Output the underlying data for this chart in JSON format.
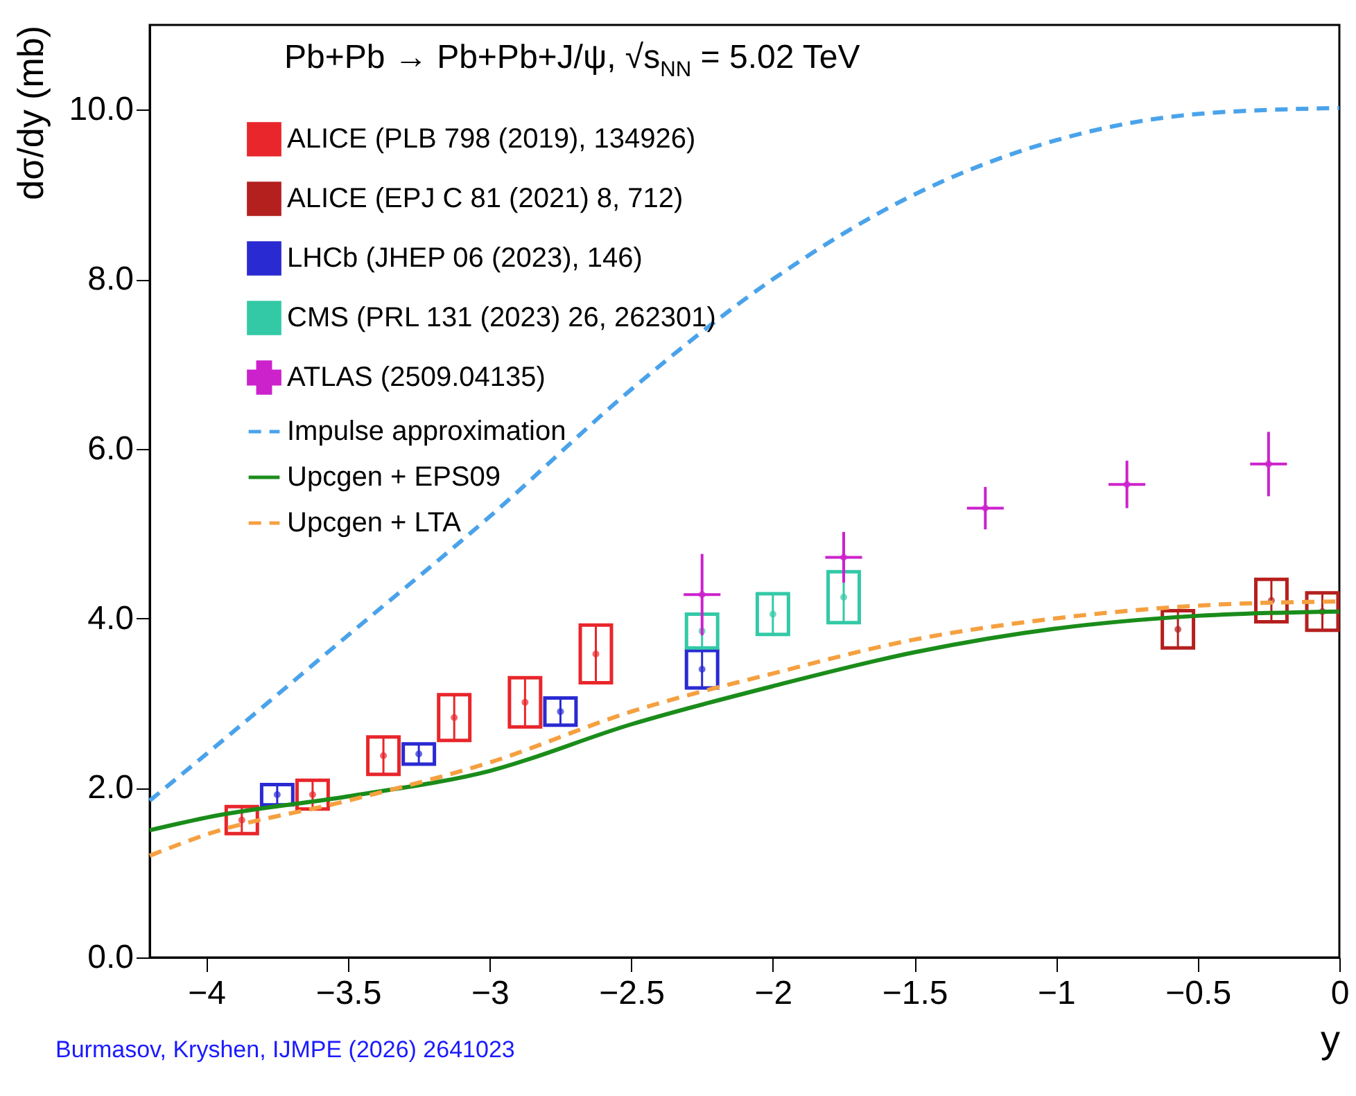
{
  "chart_data": {
    "type": "scatter",
    "title": "Pb+Pb → Pb+Pb+J/ψ, √s$_{NN}$ = 5.02 TeV",
    "xlabel": "y",
    "ylabel": "dσ/dy (mb)",
    "xlim": [
      -4.2,
      0
    ],
    "ylim": [
      0,
      11
    ],
    "xticks": [
      -4,
      -3.5,
      -3,
      -2.5,
      -2,
      -1.5,
      -1,
      -0.5,
      0
    ],
    "yticks": [
      {
        "value": 0,
        "label": "0.0"
      },
      {
        "value": 2,
        "label": "2.0"
      },
      {
        "value": 4,
        "label": "4.0"
      },
      {
        "value": 6,
        "label": "6.0"
      },
      {
        "value": 8,
        "label": "8.0"
      },
      {
        "value": 10,
        "label": "10.0"
      }
    ],
    "grid": false,
    "legend": "top left",
    "annotations": [
      "Burmasov, Kryshen, IJMPE (2026) 2641023"
    ],
    "series": [
      {
        "name": "ALICE (PLB 798 (2019), 134926)",
        "color": "#e8262b",
        "x": [
          -3.875,
          -3.625,
          -3.375,
          -3.125,
          -2.875,
          -2.625
        ],
        "values": [
          1.62,
          1.92,
          2.38,
          2.83,
          3.01,
          3.58
        ],
        "errors": [
          0.16,
          0.17,
          0.22,
          0.27,
          0.29,
          0.34
        ]
      },
      {
        "name": "ALICE (EPJ C 81 (2021) 8, 712)",
        "color": "#b4201e",
        "x": [
          -0.57,
          -0.24,
          -0.06
        ],
        "values": [
          3.87,
          4.21,
          4.08
        ],
        "errors": [
          0.22,
          0.25,
          0.22
        ]
      },
      {
        "name": "LHCb (JHEP 06 (2023), 146)",
        "color": "#2a2ad2",
        "x": [
          -3.75,
          -3.25,
          -2.75,
          -2.25
        ],
        "values": [
          1.92,
          2.4,
          2.9,
          3.4
        ],
        "errors": [
          0.12,
          0.12,
          0.16,
          0.22
        ]
      },
      {
        "name": "CMS (PRL 131 (2023) 26, 262301)",
        "color": "#33c9a6",
        "x": [
          -2.25,
          -2.0,
          -1.75
        ],
        "values": [
          3.85,
          4.05,
          4.25
        ],
        "errors": [
          0.2,
          0.24,
          0.3
        ]
      },
      {
        "name": "ATLAS (2509.04135)",
        "color": "#cc22cc",
        "x": [
          -2.25,
          -1.75,
          -1.25,
          -0.75,
          -0.25
        ],
        "values": [
          4.28,
          4.72,
          5.3,
          5.58,
          5.82
        ],
        "xerrors": [
          0.065,
          0.065,
          0.065,
          0.065,
          0.065
        ],
        "errors": [
          0.48,
          0.3,
          0.25,
          0.28,
          0.38
        ]
      },
      {
        "name": "Impulse approximation",
        "type": "line",
        "line_style": "dashed",
        "color": "#4aa3ea",
        "x": [
          -4.2,
          -4,
          -3.5,
          -3,
          -2.5,
          -2,
          -1.5,
          -1,
          -0.5,
          0
        ],
        "values": [
          1.85,
          2.4,
          3.8,
          5.2,
          6.7,
          8.0,
          9.0,
          9.64,
          9.95,
          10.02
        ]
      },
      {
        "name": "Upcgen + EPS09",
        "type": "line",
        "line_style": "solid",
        "color": "#1a8c1a",
        "x": [
          -4.2,
          -4,
          -3.5,
          -3,
          -2.5,
          -2,
          -1.5,
          -1,
          -0.5,
          0
        ],
        "values": [
          1.5,
          1.65,
          1.9,
          2.2,
          2.75,
          3.2,
          3.6,
          3.88,
          4.03,
          4.08
        ]
      },
      {
        "name": "Upcgen + LTA",
        "type": "line",
        "line_style": "dashed",
        "color": "#f5a040",
        "x": [
          -4.2,
          -4,
          -3.5,
          -3,
          -2.5,
          -2,
          -1.5,
          -1,
          -0.5,
          0
        ],
        "values": [
          1.2,
          1.45,
          1.85,
          2.3,
          2.9,
          3.35,
          3.75,
          4.0,
          4.15,
          4.2
        ]
      }
    ]
  }
}
